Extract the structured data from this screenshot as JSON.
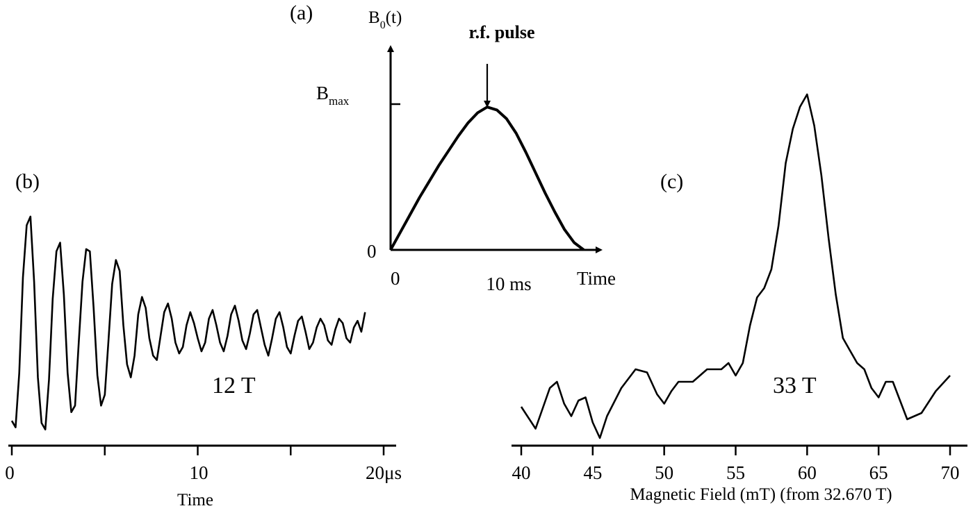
{
  "chart_data": [
    {
      "panel": "(a)",
      "type": "line",
      "xlabel": "Time",
      "ylabel": "B0(t)",
      "ylabel_main": "B",
      "ylabel_sub": "0",
      "ylabel_tail": "(t)",
      "x_tick_labels": [
        "0",
        "10 ms"
      ],
      "y_tick_labels": [
        "0",
        "Bmax"
      ],
      "y_tick_main": "B",
      "y_tick_sub": "max",
      "y_zero_label": "0",
      "annotation": "r.f. pulse",
      "annotation_x": 10,
      "xlim": [
        0,
        20
      ],
      "ylim": [
        0,
        1
      ],
      "x": [
        0,
        1,
        2,
        3,
        4,
        5,
        6,
        7,
        8,
        9,
        10,
        11,
        12,
        13,
        14,
        15,
        16,
        17,
        18,
        19,
        20
      ],
      "y": [
        0.0,
        0.12,
        0.24,
        0.36,
        0.47,
        0.58,
        0.68,
        0.78,
        0.87,
        0.94,
        0.98,
        0.96,
        0.9,
        0.8,
        0.67,
        0.53,
        0.39,
        0.26,
        0.14,
        0.05,
        0.0
      ]
    },
    {
      "panel": "(b)",
      "type": "line",
      "xlabel": "Time",
      "x_tick_labels": [
        "0",
        "10",
        "20μs"
      ],
      "xlim": [
        0,
        20
      ],
      "annotation": "12 T",
      "x": [
        0.0,
        0.2,
        0.4,
        0.6,
        0.8,
        1.0,
        1.2,
        1.4,
        1.6,
        1.8,
        2.0,
        2.2,
        2.4,
        2.6,
        2.8,
        3.0,
        3.2,
        3.4,
        3.6,
        3.8,
        4.0,
        4.2,
        4.4,
        4.6,
        4.8,
        5.0,
        5.2,
        5.4,
        5.6,
        5.8,
        6.0,
        6.2,
        6.4,
        6.6,
        6.8,
        7.0,
        7.2,
        7.4,
        7.6,
        7.8,
        8.0,
        8.2,
        8.4,
        8.6,
        8.8,
        9.0,
        9.2,
        9.4,
        9.6,
        9.8,
        10.0,
        10.2,
        10.4,
        10.6,
        10.8,
        11.0,
        11.2,
        11.4,
        11.6,
        11.8,
        12.0,
        12.2,
        12.4,
        12.6,
        12.8,
        13.0,
        13.2,
        13.4,
        13.6,
        13.8,
        14.0,
        14.2,
        14.4,
        14.6,
        14.8,
        15.0,
        15.2,
        15.4,
        15.6,
        15.8,
        16.0,
        16.2,
        16.4,
        16.6,
        16.8,
        17.0,
        17.2,
        17.4,
        17.6,
        17.8,
        18.0,
        18.2,
        18.4,
        18.6,
        18.8,
        19.0
      ],
      "y": [
        0.06,
        0.03,
        0.28,
        0.72,
        0.96,
        1.0,
        0.7,
        0.26,
        0.05,
        0.02,
        0.25,
        0.62,
        0.84,
        0.88,
        0.64,
        0.28,
        0.1,
        0.13,
        0.42,
        0.7,
        0.85,
        0.84,
        0.58,
        0.27,
        0.13,
        0.18,
        0.43,
        0.69,
        0.8,
        0.75,
        0.5,
        0.32,
        0.26,
        0.36,
        0.55,
        0.63,
        0.58,
        0.44,
        0.36,
        0.34,
        0.45,
        0.56,
        0.6,
        0.53,
        0.42,
        0.37,
        0.4,
        0.5,
        0.56,
        0.51,
        0.44,
        0.38,
        0.42,
        0.53,
        0.57,
        0.5,
        0.42,
        0.38,
        0.45,
        0.55,
        0.59,
        0.52,
        0.43,
        0.39,
        0.46,
        0.55,
        0.57,
        0.49,
        0.41,
        0.36,
        0.44,
        0.53,
        0.56,
        0.49,
        0.4,
        0.37,
        0.45,
        0.52,
        0.54,
        0.47,
        0.39,
        0.42,
        0.49,
        0.53,
        0.5,
        0.43,
        0.41,
        0.48,
        0.53,
        0.51,
        0.44,
        0.42,
        0.49,
        0.52,
        0.47,
        0.56
      ]
    },
    {
      "panel": "(c)",
      "type": "line",
      "xlabel": "Magnetic Field (mT) (from 32.670 T)",
      "x_tick_labels": [
        "40",
        "45",
        "50",
        "55",
        "60",
        "65",
        "70"
      ],
      "x_ticks": [
        40,
        45,
        50,
        55,
        60,
        65,
        70
      ],
      "xlim": [
        40,
        70
      ],
      "annotation": "33 T",
      "x": [
        40.0,
        41.0,
        42.0,
        42.5,
        43.0,
        43.5,
        44.0,
        44.5,
        45.0,
        45.5,
        46.0,
        47.0,
        48.0,
        48.8,
        49.5,
        50.0,
        50.5,
        51.0,
        52.0,
        53.0,
        54.0,
        54.5,
        55.0,
        55.5,
        56.0,
        56.5,
        57.0,
        57.5,
        58.0,
        58.5,
        59.0,
        59.5,
        60.0,
        60.5,
        61.0,
        61.5,
        62.0,
        62.5,
        63.0,
        63.5,
        64.0,
        64.5,
        65.0,
        65.5,
        66.0,
        66.5,
        67.0,
        67.5,
        68.0,
        69.0,
        70.0
      ],
      "y": [
        0.08,
        0.01,
        0.14,
        0.16,
        0.09,
        0.05,
        0.1,
        0.11,
        0.03,
        -0.02,
        0.05,
        0.14,
        0.2,
        0.19,
        0.12,
        0.09,
        0.13,
        0.16,
        0.16,
        0.2,
        0.2,
        0.22,
        0.18,
        0.22,
        0.34,
        0.43,
        0.46,
        0.52,
        0.66,
        0.86,
        0.97,
        1.04,
        1.08,
        0.98,
        0.82,
        0.62,
        0.44,
        0.3,
        0.26,
        0.22,
        0.2,
        0.14,
        0.11,
        0.16,
        0.16,
        0.1,
        0.04,
        0.05,
        0.06,
        0.13,
        0.18
      ]
    }
  ]
}
